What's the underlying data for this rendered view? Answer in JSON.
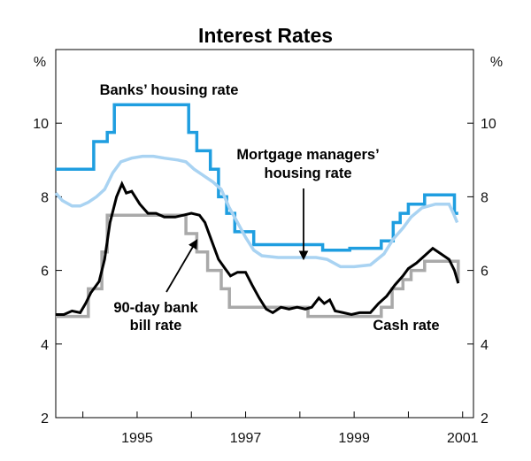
{
  "chart_data": {
    "type": "line",
    "title": "Interest Rates",
    "y_unit_left": "%",
    "y_unit_right": "%",
    "ylim": [
      2,
      12
    ],
    "yticks": [
      2,
      4,
      6,
      8,
      10
    ],
    "xlim": [
      1993.5,
      2001.2
    ],
    "xticks": [
      {
        "value": 1995,
        "label": "1995"
      },
      {
        "value": 1997,
        "label": "1997"
      },
      {
        "value": 1999,
        "label": "1999"
      },
      {
        "value": 2001,
        "label": "2001"
      }
    ],
    "grid": false,
    "series": [
      {
        "name": "Banks’ housing rate",
        "color": "#1f9ee0",
        "style": "step",
        "points": [
          [
            1993.5,
            8.75
          ],
          [
            1994.2,
            8.75
          ],
          [
            1994.2,
            9.5
          ],
          [
            1994.45,
            9.5
          ],
          [
            1994.45,
            9.75
          ],
          [
            1994.58,
            9.75
          ],
          [
            1994.58,
            10.5
          ],
          [
            1995.95,
            10.5
          ],
          [
            1995.95,
            9.75
          ],
          [
            1996.1,
            9.75
          ],
          [
            1996.1,
            9.25
          ],
          [
            1996.35,
            9.25
          ],
          [
            1996.35,
            8.75
          ],
          [
            1996.5,
            8.75
          ],
          [
            1996.5,
            8.0
          ],
          [
            1996.65,
            8.0
          ],
          [
            1996.65,
            7.55
          ],
          [
            1996.8,
            7.55
          ],
          [
            1996.8,
            7.05
          ],
          [
            1997.15,
            7.05
          ],
          [
            1997.15,
            6.7
          ],
          [
            1998.42,
            6.7
          ],
          [
            1998.42,
            6.55
          ],
          [
            1998.92,
            6.55
          ],
          [
            1998.92,
            6.6
          ],
          [
            1999.5,
            6.6
          ],
          [
            1999.5,
            6.8
          ],
          [
            1999.72,
            6.8
          ],
          [
            1999.72,
            7.3
          ],
          [
            1999.85,
            7.3
          ],
          [
            1999.85,
            7.55
          ],
          [
            2000.0,
            7.55
          ],
          [
            2000.0,
            7.8
          ],
          [
            2000.3,
            7.8
          ],
          [
            2000.3,
            8.05
          ],
          [
            2000.85,
            8.05
          ],
          [
            2000.85,
            7.55
          ],
          [
            2000.92,
            7.55
          ]
        ]
      },
      {
        "name": "Mortgage managers’ housing rate",
        "color": "#a9d3f2",
        "style": "line",
        "points": [
          [
            1993.5,
            8.1
          ],
          [
            1993.62,
            7.9
          ],
          [
            1993.8,
            7.75
          ],
          [
            1993.95,
            7.75
          ],
          [
            1994.1,
            7.85
          ],
          [
            1994.25,
            8.0
          ],
          [
            1994.4,
            8.2
          ],
          [
            1994.55,
            8.65
          ],
          [
            1994.7,
            8.95
          ],
          [
            1994.9,
            9.05
          ],
          [
            1995.1,
            9.1
          ],
          [
            1995.3,
            9.1
          ],
          [
            1995.5,
            9.05
          ],
          [
            1995.75,
            9.0
          ],
          [
            1995.9,
            8.95
          ],
          [
            1996.05,
            8.75
          ],
          [
            1996.2,
            8.6
          ],
          [
            1996.4,
            8.4
          ],
          [
            1996.55,
            8.2
          ],
          [
            1996.7,
            7.7
          ],
          [
            1996.85,
            7.3
          ],
          [
            1997.0,
            6.9
          ],
          [
            1997.15,
            6.55
          ],
          [
            1997.3,
            6.4
          ],
          [
            1997.6,
            6.35
          ],
          [
            1998.0,
            6.35
          ],
          [
            1998.3,
            6.35
          ],
          [
            1998.5,
            6.3
          ],
          [
            1998.75,
            6.1
          ],
          [
            1999.0,
            6.1
          ],
          [
            1999.3,
            6.15
          ],
          [
            1999.55,
            6.45
          ],
          [
            1999.72,
            6.85
          ],
          [
            1999.9,
            7.15
          ],
          [
            2000.05,
            7.45
          ],
          [
            2000.25,
            7.7
          ],
          [
            2000.5,
            7.8
          ],
          [
            2000.75,
            7.8
          ],
          [
            2000.83,
            7.55
          ],
          [
            2000.9,
            7.3
          ]
        ]
      },
      {
        "name": "Cash rate",
        "color": "#a9a9a9",
        "style": "step",
        "points": [
          [
            1993.5,
            4.75
          ],
          [
            1994.1,
            4.75
          ],
          [
            1994.1,
            5.5
          ],
          [
            1994.35,
            5.5
          ],
          [
            1994.35,
            6.5
          ],
          [
            1994.45,
            6.5
          ],
          [
            1994.45,
            7.5
          ],
          [
            1995.9,
            7.5
          ],
          [
            1995.9,
            7.0
          ],
          [
            1996.1,
            7.0
          ],
          [
            1996.1,
            6.5
          ],
          [
            1996.3,
            6.5
          ],
          [
            1996.3,
            6.0
          ],
          [
            1996.55,
            6.0
          ],
          [
            1996.55,
            5.5
          ],
          [
            1996.7,
            5.5
          ],
          [
            1996.7,
            5.0
          ],
          [
            1998.15,
            5.0
          ],
          [
            1998.15,
            4.75
          ],
          [
            1999.5,
            4.75
          ],
          [
            1999.5,
            5.0
          ],
          [
            1999.7,
            5.0
          ],
          [
            1999.7,
            5.5
          ],
          [
            1999.9,
            5.5
          ],
          [
            1999.9,
            5.75
          ],
          [
            2000.05,
            5.75
          ],
          [
            2000.05,
            6.0
          ],
          [
            2000.3,
            6.0
          ],
          [
            2000.3,
            6.25
          ],
          [
            2000.92,
            6.25
          ],
          [
            2000.92,
            5.7
          ]
        ]
      },
      {
        "name": "90-day bank bill rate",
        "color": "#000000",
        "style": "line",
        "points": [
          [
            1993.5,
            4.8
          ],
          [
            1993.65,
            4.8
          ],
          [
            1993.8,
            4.9
          ],
          [
            1993.95,
            4.85
          ],
          [
            1994.05,
            5.1
          ],
          [
            1994.15,
            5.4
          ],
          [
            1994.3,
            5.7
          ],
          [
            1994.4,
            6.3
          ],
          [
            1994.5,
            7.3
          ],
          [
            1994.62,
            8.0
          ],
          [
            1994.72,
            8.35
          ],
          [
            1994.8,
            8.1
          ],
          [
            1994.9,
            8.15
          ],
          [
            1995.05,
            7.8
          ],
          [
            1995.2,
            7.55
          ],
          [
            1995.35,
            7.55
          ],
          [
            1995.5,
            7.45
          ],
          [
            1995.7,
            7.45
          ],
          [
            1995.85,
            7.5
          ],
          [
            1996.0,
            7.55
          ],
          [
            1996.15,
            7.5
          ],
          [
            1996.25,
            7.3
          ],
          [
            1996.35,
            6.9
          ],
          [
            1996.5,
            6.3
          ],
          [
            1996.62,
            6.05
          ],
          [
            1996.72,
            5.85
          ],
          [
            1996.85,
            5.95
          ],
          [
            1997.0,
            5.95
          ],
          [
            1997.12,
            5.6
          ],
          [
            1997.25,
            5.25
          ],
          [
            1997.38,
            4.95
          ],
          [
            1997.5,
            4.85
          ],
          [
            1997.65,
            5.0
          ],
          [
            1997.8,
            4.95
          ],
          [
            1997.95,
            5.0
          ],
          [
            1998.1,
            4.95
          ],
          [
            1998.22,
            5.0
          ],
          [
            1998.35,
            5.25
          ],
          [
            1998.45,
            5.1
          ],
          [
            1998.55,
            5.2
          ],
          [
            1998.65,
            4.9
          ],
          [
            1998.8,
            4.85
          ],
          [
            1998.95,
            4.8
          ],
          [
            1999.1,
            4.85
          ],
          [
            1999.3,
            4.85
          ],
          [
            1999.45,
            5.1
          ],
          [
            1999.6,
            5.3
          ],
          [
            1999.75,
            5.6
          ],
          [
            1999.9,
            5.85
          ],
          [
            2000.0,
            6.05
          ],
          [
            2000.15,
            6.2
          ],
          [
            2000.3,
            6.4
          ],
          [
            2000.45,
            6.6
          ],
          [
            2000.6,
            6.45
          ],
          [
            2000.75,
            6.3
          ],
          [
            2000.85,
            6.0
          ],
          [
            2000.92,
            5.65
          ]
        ]
      }
    ],
    "annotations": [
      {
        "key": "banks",
        "lines": [
          "Banks’ housing rate"
        ]
      },
      {
        "key": "mortgage",
        "lines": [
          "Mortgage managers’",
          "housing rate"
        ]
      },
      {
        "key": "bill",
        "lines": [
          "90-day bank",
          "bill rate"
        ]
      },
      {
        "key": "cash",
        "lines": [
          "Cash rate"
        ]
      }
    ]
  }
}
